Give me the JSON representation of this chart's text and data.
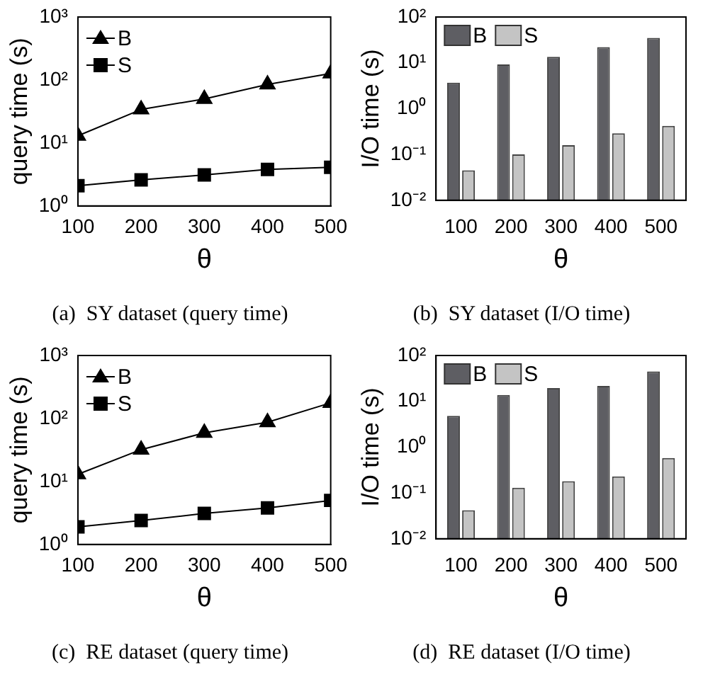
{
  "chart_data": [
    {
      "type": "line",
      "title": "(a)  SY dataset (query time)",
      "xlabel": "θ",
      "ylabel": "query time (s)",
      "x": [
        100,
        200,
        300,
        400,
        500
      ],
      "xlim": [
        100,
        500
      ],
      "xticks": [
        100,
        200,
        300,
        400,
        500
      ],
      "log": "y",
      "ylim": [
        1,
        1000
      ],
      "yticks": [
        {
          "value": 1,
          "label": "10⁰"
        },
        {
          "value": 10,
          "label": "10¹"
        },
        {
          "value": 100,
          "label": "10²"
        },
        {
          "value": 1000,
          "label": "10³"
        }
      ],
      "grid": false,
      "legend": "top left",
      "line_style": "solid",
      "series": [
        {
          "name": "B",
          "color": "#000000",
          "marker": "triangle",
          "values": [
            13,
            34,
            50,
            85,
            127
          ]
        },
        {
          "name": "S",
          "color": "#000000",
          "marker": "square",
          "values": [
            2.1,
            2.6,
            3.1,
            3.8,
            4.1
          ]
        }
      ]
    },
    {
      "type": "bar",
      "title": "(b)  SY dataset (I/O time)",
      "xlabel": "θ",
      "ylabel": "I/O time (s)",
      "categories": [
        "100",
        "200",
        "300",
        "400",
        "500"
      ],
      "log": "y",
      "ylim": [
        0.01,
        100
      ],
      "yticks": [
        {
          "value": 0.01,
          "label": "10⁻²"
        },
        {
          "value": 0.1,
          "label": "10⁻¹"
        },
        {
          "value": 1,
          "label": "10⁰"
        },
        {
          "value": 10,
          "label": "10¹"
        },
        {
          "value": 100,
          "label": "10²"
        }
      ],
      "grid": false,
      "legend": "top left",
      "series": [
        {
          "name": "B",
          "color": "#5e5e63",
          "values": [
            3.7,
            9.2,
            13.5,
            22,
            35
          ]
        },
        {
          "name": "S",
          "color": "#c4c4c4",
          "values": [
            0.045,
            0.1,
            0.16,
            0.29,
            0.42
          ]
        }
      ]
    },
    {
      "type": "line",
      "title": "(c)  RE dataset (query time)",
      "xlabel": "θ",
      "ylabel": "query time (s)",
      "x": [
        100,
        200,
        300,
        400,
        500
      ],
      "xlim": [
        100,
        500
      ],
      "xticks": [
        100,
        200,
        300,
        400,
        500
      ],
      "log": "y",
      "ylim": [
        1,
        1000
      ],
      "yticks": [
        {
          "value": 1,
          "label": "10⁰"
        },
        {
          "value": 10,
          "label": "10¹"
        },
        {
          "value": 100,
          "label": "10²"
        },
        {
          "value": 1000,
          "label": "10³"
        }
      ],
      "grid": false,
      "legend": "top left",
      "line_style": "solid",
      "series": [
        {
          "name": "B",
          "color": "#000000",
          "marker": "triangle",
          "values": [
            13,
            32,
            59,
            87,
            177
          ]
        },
        {
          "name": "S",
          "color": "#000000",
          "marker": "square",
          "values": [
            1.9,
            2.4,
            3.1,
            3.8,
            5.0
          ]
        }
      ]
    },
    {
      "type": "bar",
      "title": "(d)  RE dataset (I/O time)",
      "xlabel": "θ",
      "ylabel": "I/O time (s)",
      "categories": [
        "100",
        "200",
        "300",
        "400",
        "500"
      ],
      "log": "y",
      "ylim": [
        0.01,
        100
      ],
      "yticks": [
        {
          "value": 0.01,
          "label": "10⁻²"
        },
        {
          "value": 0.1,
          "label": "10⁻¹"
        },
        {
          "value": 1,
          "label": "10⁰"
        },
        {
          "value": 10,
          "label": "10¹"
        },
        {
          "value": 100,
          "label": "10²"
        }
      ],
      "grid": false,
      "legend": "top left",
      "series": [
        {
          "name": "B",
          "color": "#5e5e63",
          "values": [
            4.8,
            13.7,
            19.5,
            21.6,
            45
          ]
        },
        {
          "name": "S",
          "color": "#c4c4c4",
          "values": [
            0.042,
            0.13,
            0.18,
            0.23,
            0.58
          ]
        }
      ]
    }
  ]
}
